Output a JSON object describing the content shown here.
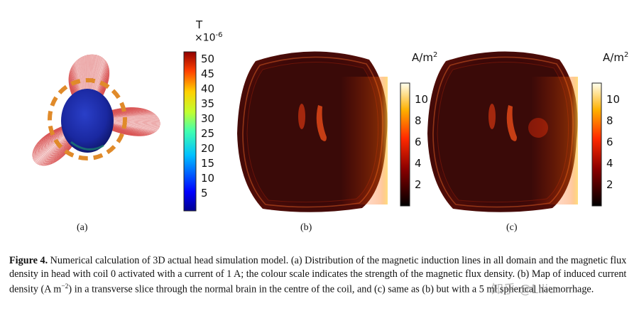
{
  "panel_a": {
    "label": "(a)",
    "colorbar": {
      "unit": "T",
      "multiplier": "×10",
      "exponent": "-6",
      "ticks": [
        "50",
        "45",
        "40",
        "35",
        "30",
        "25",
        "20",
        "15",
        "10",
        "5"
      ]
    }
  },
  "panel_b": {
    "label": "(b)",
    "colorbar": {
      "unit": "A/m",
      "exponent": "2",
      "ticks": [
        "10",
        "8",
        "6",
        "4",
        "2"
      ]
    }
  },
  "panel_c": {
    "label": "(c)",
    "colorbar": {
      "unit": "A/m",
      "exponent": "2",
      "ticks": [
        "10",
        "8",
        "6",
        "4",
        "2"
      ]
    }
  },
  "caption": {
    "figure_label": "Figure 4.",
    "text": "Numerical calculation of 3D actual head simulation model. (a) Distribution of the magnetic induction lines in all domain and the magnetic flux density in head with coil 0 activated with a current of 1 A; the colour scale indicates the strength of the magnetic flux density. (b) Map of induced current density (A m",
    "exp": "−2",
    "text_end": ") in a transverse slice through the normal brain in the centre of the coil, and (c) same as (b) but with a 5 ml spherical haemorrhage."
  },
  "watermark": "知乎 @Liliu"
}
